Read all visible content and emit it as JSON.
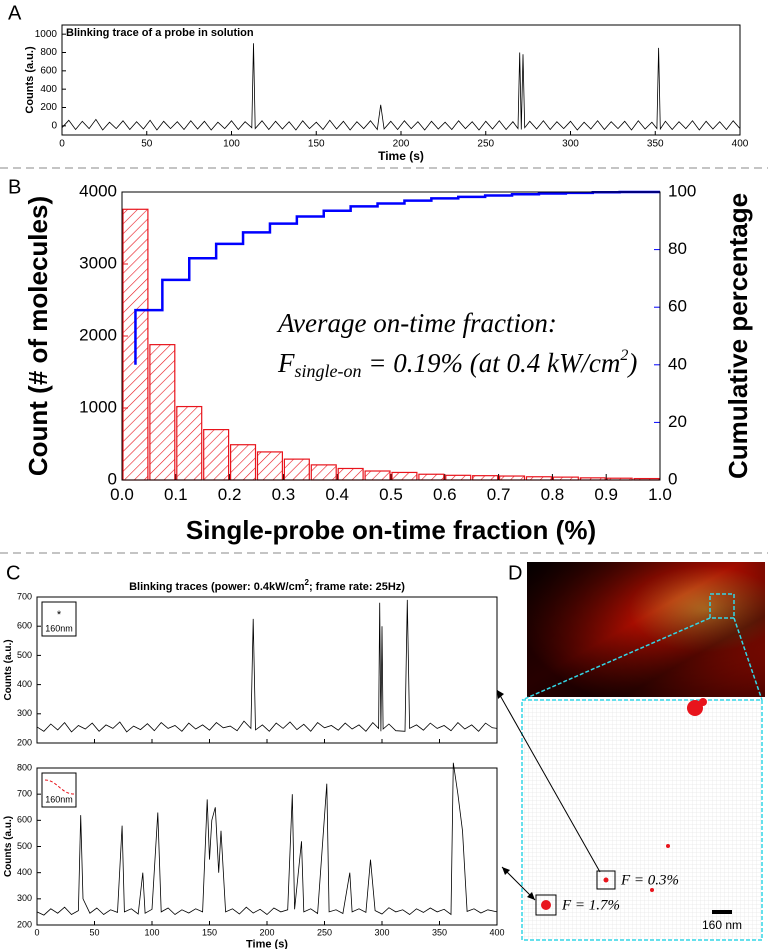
{
  "panel_labels": [
    "A",
    "B",
    "C",
    "D"
  ],
  "chart_data": [
    {
      "type": "line",
      "title": "Blinking trace of a probe in solution",
      "xlabel": "Time (s)",
      "ylabel": "Counts (a.u.)",
      "color": "#000000",
      "xlim": [
        0,
        400
      ],
      "xticks": [
        0,
        50,
        100,
        150,
        200,
        250,
        300,
        350,
        400
      ],
      "ylim": [
        -100,
        1100
      ],
      "yticks": [
        0,
        200,
        400,
        600,
        800,
        1000
      ],
      "x": [
        0,
        4,
        8,
        12,
        16,
        20,
        24,
        28,
        32,
        36,
        40,
        44,
        48,
        52,
        56,
        60,
        64,
        68,
        72,
        76,
        80,
        84,
        88,
        92,
        96,
        100,
        104,
        108,
        112,
        113,
        114,
        118,
        122,
        126,
        130,
        134,
        138,
        142,
        146,
        150,
        154,
        158,
        162,
        166,
        170,
        174,
        178,
        182,
        186,
        188,
        190,
        194,
        198,
        202,
        206,
        210,
        214,
        218,
        222,
        226,
        230,
        234,
        238,
        242,
        246,
        250,
        254,
        258,
        262,
        266,
        269,
        270,
        271,
        272,
        273,
        276,
        280,
        284,
        288,
        292,
        296,
        300,
        304,
        308,
        312,
        316,
        320,
        324,
        328,
        332,
        336,
        340,
        344,
        348,
        351,
        352,
        353,
        356,
        360,
        364,
        368,
        372,
        376,
        380,
        384,
        388,
        392,
        396,
        400
      ],
      "values": [
        -20,
        60,
        -40,
        50,
        -30,
        70,
        -45,
        40,
        -30,
        55,
        -40,
        45,
        -35,
        60,
        -45,
        50,
        -30,
        45,
        -40,
        55,
        -35,
        50,
        -45,
        40,
        -30,
        55,
        -40,
        45,
        -20,
        900,
        -30,
        55,
        -40,
        50,
        -35,
        45,
        -45,
        55,
        -30,
        40,
        -40,
        60,
        -35,
        50,
        -45,
        45,
        -30,
        55,
        -40,
        230,
        -35,
        50,
        -40,
        55,
        -30,
        45,
        -45,
        50,
        -35,
        40,
        -40,
        55,
        -30,
        45,
        -45,
        50,
        -35,
        55,
        -40,
        45,
        -30,
        800,
        -40,
        780,
        -20,
        50,
        -35,
        55,
        -40,
        45,
        -30,
        50,
        -45,
        40,
        -35,
        55,
        -40,
        45,
        -30,
        50,
        -45,
        55,
        -35,
        40,
        -30,
        850,
        -35,
        50,
        -40,
        45,
        -30,
        55,
        -45,
        50,
        -35,
        45,
        -40,
        55,
        -30
      ]
    },
    {
      "type": "histogram",
      "xlabel": "Single-probe on-time fraction (%)",
      "ylabel": "Count (# of molecules)",
      "y2label": "Cumulative percentage",
      "color": "#e8141c",
      "bins": [
        0,
        0.05,
        0.1,
        0.15,
        0.2,
        0.25,
        0.3,
        0.35,
        0.4,
        0.45,
        0.5,
        0.55,
        0.6,
        0.65,
        0.7,
        0.75,
        0.8,
        0.85,
        0.9,
        0.95,
        1
      ],
      "counts": [
        3760,
        1880,
        1020,
        700,
        490,
        390,
        290,
        210,
        160,
        125,
        105,
        80,
        65,
        60,
        55,
        45,
        40,
        30,
        25,
        20
      ],
      "xlim": [
        0,
        1
      ],
      "xticks": [
        {
          "value": 0,
          "label": "0.0"
        },
        0.1,
        0.2,
        0.3,
        0.4,
        0.5,
        0.6,
        0.7,
        0.8,
        0.9,
        {
          "value": 1,
          "label": "1.0"
        }
      ],
      "ylim": [
        0,
        4000
      ],
      "yticks": [
        0,
        1000,
        2000,
        3000,
        4000
      ],
      "y2lim": [
        0,
        100
      ],
      "y2ticks": [
        0,
        20,
        40,
        60,
        80,
        100
      ],
      "cumulative": {
        "axis": "y2",
        "color": "#0000ff",
        "x": [
          0.025,
          0.025,
          0.075,
          0.125,
          0.175,
          0.225,
          0.275,
          0.325,
          0.375,
          0.425,
          0.475,
          0.525,
          0.575,
          0.625,
          0.675,
          0.725,
          0.775,
          0.825,
          0.875,
          0.925,
          0.975,
          1
        ],
        "values": [
          40,
          59,
          69.5,
          77,
          82,
          86,
          89,
          91.5,
          93.5,
          95,
          96,
          97,
          97.8,
          98.3,
          98.8,
          99.2,
          99.5,
          99.7,
          99.9,
          100,
          100,
          100
        ]
      },
      "annotation": {
        "line1": "Average on-time fraction:",
        "symbol": "F",
        "subscript": "single-on",
        "text": " = 0.19% (at 0.4 kW/cm",
        "superscript": "2",
        "end": ")"
      }
    },
    {
      "type": "line",
      "title": {
        "text": "Blinking traces (power: 0.4kW/cm",
        "superscript": "2",
        "end": "; frame rate: 25Hz)"
      },
      "ylabel": "Counts (a.u.)",
      "inset_label": "160nm",
      "color": "#000000",
      "xtick_labels": false,
      "xlim": [
        0,
        400
      ],
      "xticks": [
        0,
        50,
        100,
        150,
        200,
        250,
        300,
        350,
        400
      ],
      "ylim": [
        200,
        700
      ],
      "yticks": [
        200,
        300,
        400,
        500,
        600,
        700
      ],
      "x": [
        0,
        6,
        12,
        18,
        24,
        30,
        36,
        42,
        48,
        54,
        60,
        66,
        72,
        78,
        84,
        90,
        96,
        102,
        108,
        114,
        120,
        126,
        132,
        138,
        144,
        150,
        156,
        162,
        168,
        174,
        180,
        186,
        188,
        190,
        196,
        202,
        208,
        214,
        220,
        226,
        232,
        238,
        244,
        250,
        256,
        262,
        268,
        274,
        280,
        286,
        292,
        297,
        298,
        299,
        300,
        301,
        306,
        312,
        320,
        322,
        324,
        330,
        336,
        342,
        348,
        354,
        360,
        366,
        372,
        378,
        384,
        390,
        396,
        400
      ],
      "values": [
        255,
        240,
        265,
        245,
        270,
        238,
        260,
        248,
        268,
        240,
        262,
        250,
        272,
        238,
        258,
        246,
        266,
        242,
        270,
        250,
        260,
        240,
        268,
        248,
        262,
        244,
        270,
        252,
        258,
        242,
        275,
        250,
        625,
        245,
        262,
        240,
        268,
        250,
        272,
        246,
        264,
        240,
        270,
        252,
        260,
        244,
        268,
        248,
        262,
        240,
        270,
        250,
        680,
        240,
        600,
        248,
        265,
        242,
        240,
        690,
        250,
        262,
        244,
        268,
        250,
        260,
        242,
        270,
        248,
        262,
        240,
        268,
        252,
        250
      ]
    },
    {
      "type": "line",
      "xlabel": "Time (s)",
      "ylabel": "Counts (a.u.)",
      "inset_label": "160nm",
      "color": "#000000",
      "xlim": [
        0,
        400
      ],
      "xticks": [
        0,
        50,
        100,
        150,
        200,
        250,
        300,
        350,
        400
      ],
      "ylim": [
        200,
        800
      ],
      "yticks": [
        200,
        300,
        400,
        500,
        600,
        700,
        800
      ],
      "x": [
        0,
        6,
        12,
        18,
        24,
        30,
        36,
        38,
        40,
        46,
        52,
        58,
        64,
        70,
        74,
        76,
        82,
        88,
        92,
        94,
        100,
        105,
        108,
        114,
        120,
        126,
        132,
        138,
        144,
        148,
        150,
        152,
        155,
        158,
        160,
        164,
        170,
        176,
        182,
        188,
        194,
        200,
        206,
        212,
        218,
        222,
        224,
        230,
        232,
        238,
        244,
        252,
        254,
        260,
        266,
        272,
        274,
        280,
        286,
        290,
        294,
        300,
        306,
        312,
        318,
        324,
        330,
        336,
        342,
        348,
        354,
        360,
        362,
        366,
        370,
        374,
        380,
        386,
        392,
        400
      ],
      "values": [
        250,
        238,
        262,
        245,
        268,
        240,
        255,
        620,
        300,
        245,
        265,
        240,
        258,
        248,
        580,
        250,
        262,
        242,
        400,
        245,
        260,
        630,
        250,
        265,
        240,
        258,
        246,
        262,
        250,
        680,
        450,
        600,
        650,
        400,
        560,
        250,
        262,
        242,
        268,
        246,
        260,
        240,
        265,
        250,
        258,
        700,
        260,
        520,
        250,
        262,
        244,
        740,
        250,
        258,
        244,
        400,
        250,
        262,
        248,
        450,
        255,
        242,
        266,
        250,
        258,
        240,
        262,
        248,
        265,
        250,
        260,
        240,
        820,
        700,
        560,
        252,
        262,
        246,
        258,
        250
      ]
    }
  ],
  "image_panel": {
    "annotations": [
      "F = 0.3%",
      "F = 1.7%"
    ],
    "scale_bar": "160 nm"
  }
}
